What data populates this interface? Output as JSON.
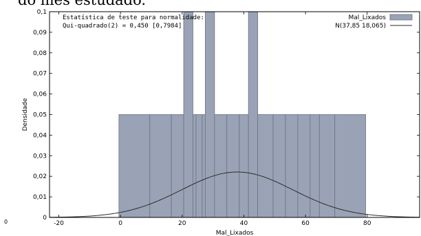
{
  "page": {
    "header_fragment": "do mês estudado.",
    "corner_text": "0"
  },
  "chart_data": {
    "type": "bar",
    "title": "",
    "xlabel": "Mal_Lixados",
    "ylabel": "Densidade",
    "xlim": [
      -23,
      97
    ],
    "ylim": [
      0,
      0.1
    ],
    "x_ticks": [
      -20,
      0,
      20,
      40,
      60,
      80
    ],
    "y_ticks": [
      0,
      0.01,
      0.02,
      0.03,
      0.04,
      0.05,
      0.06,
      0.07,
      0.08,
      0.09,
      0.1
    ],
    "y_tick_labels": [
      "0",
      "0,01",
      "0,02",
      "0,03",
      "0,04",
      "0,05",
      "0,06",
      "0,07",
      "0,08",
      "0,09",
      "0,1"
    ],
    "x_tick_labels": [
      "-20",
      "0",
      "20",
      "40",
      "60",
      "80"
    ],
    "bar_color": "#9aa3b5",
    "bar_edge_color": "#6b7284",
    "curve_color": "#2a2a2a",
    "bars": [
      {
        "x0": -0.5,
        "x1": 9.5,
        "density": 0.05
      },
      {
        "x0": 9.5,
        "x1": 16.5,
        "density": 0.05
      },
      {
        "x0": 16.5,
        "x1": 20.5,
        "density": 0.05
      },
      {
        "x0": 20.5,
        "x1": 23.5,
        "density": 0.1
      },
      {
        "x0": 23.5,
        "x1": 24.5,
        "density": 0.05
      },
      {
        "x0": 24.5,
        "x1": 26.5,
        "density": 0.05
      },
      {
        "x0": 26.5,
        "x1": 27.5,
        "density": 0.05
      },
      {
        "x0": 27.5,
        "x1": 30.5,
        "density": 0.1
      },
      {
        "x0": 30.5,
        "x1": 34.5,
        "density": 0.05
      },
      {
        "x0": 34.5,
        "x1": 38.5,
        "density": 0.05
      },
      {
        "x0": 38.5,
        "x1": 41.5,
        "density": 0.05
      },
      {
        "x0": 41.5,
        "x1": 44.5,
        "density": 0.1
      },
      {
        "x0": 44.5,
        "x1": 49.5,
        "density": 0.05
      },
      {
        "x0": 49.5,
        "x1": 53.5,
        "density": 0.05
      },
      {
        "x0": 53.5,
        "x1": 57.5,
        "density": 0.05
      },
      {
        "x0": 57.5,
        "x1": 61.5,
        "density": 0.05
      },
      {
        "x0": 61.5,
        "x1": 64.5,
        "density": 0.05
      },
      {
        "x0": 64.5,
        "x1": 69.5,
        "density": 0.05
      },
      {
        "x0": 69.5,
        "x1": 79.5,
        "density": 0.05
      }
    ],
    "normal_curve": {
      "mean": 37.85,
      "sd": 18.065
    },
    "annotation": {
      "line1": "Estatística de teste para normalidade:",
      "line2": "Qui-quadrado(2) = 0,450 [0,7984]"
    },
    "legend": {
      "position": "top-right",
      "entries": [
        {
          "label": "Mal_Lixados",
          "kind": "bar"
        },
        {
          "label": "N(37,85 18,065)",
          "kind": "line"
        }
      ]
    }
  }
}
